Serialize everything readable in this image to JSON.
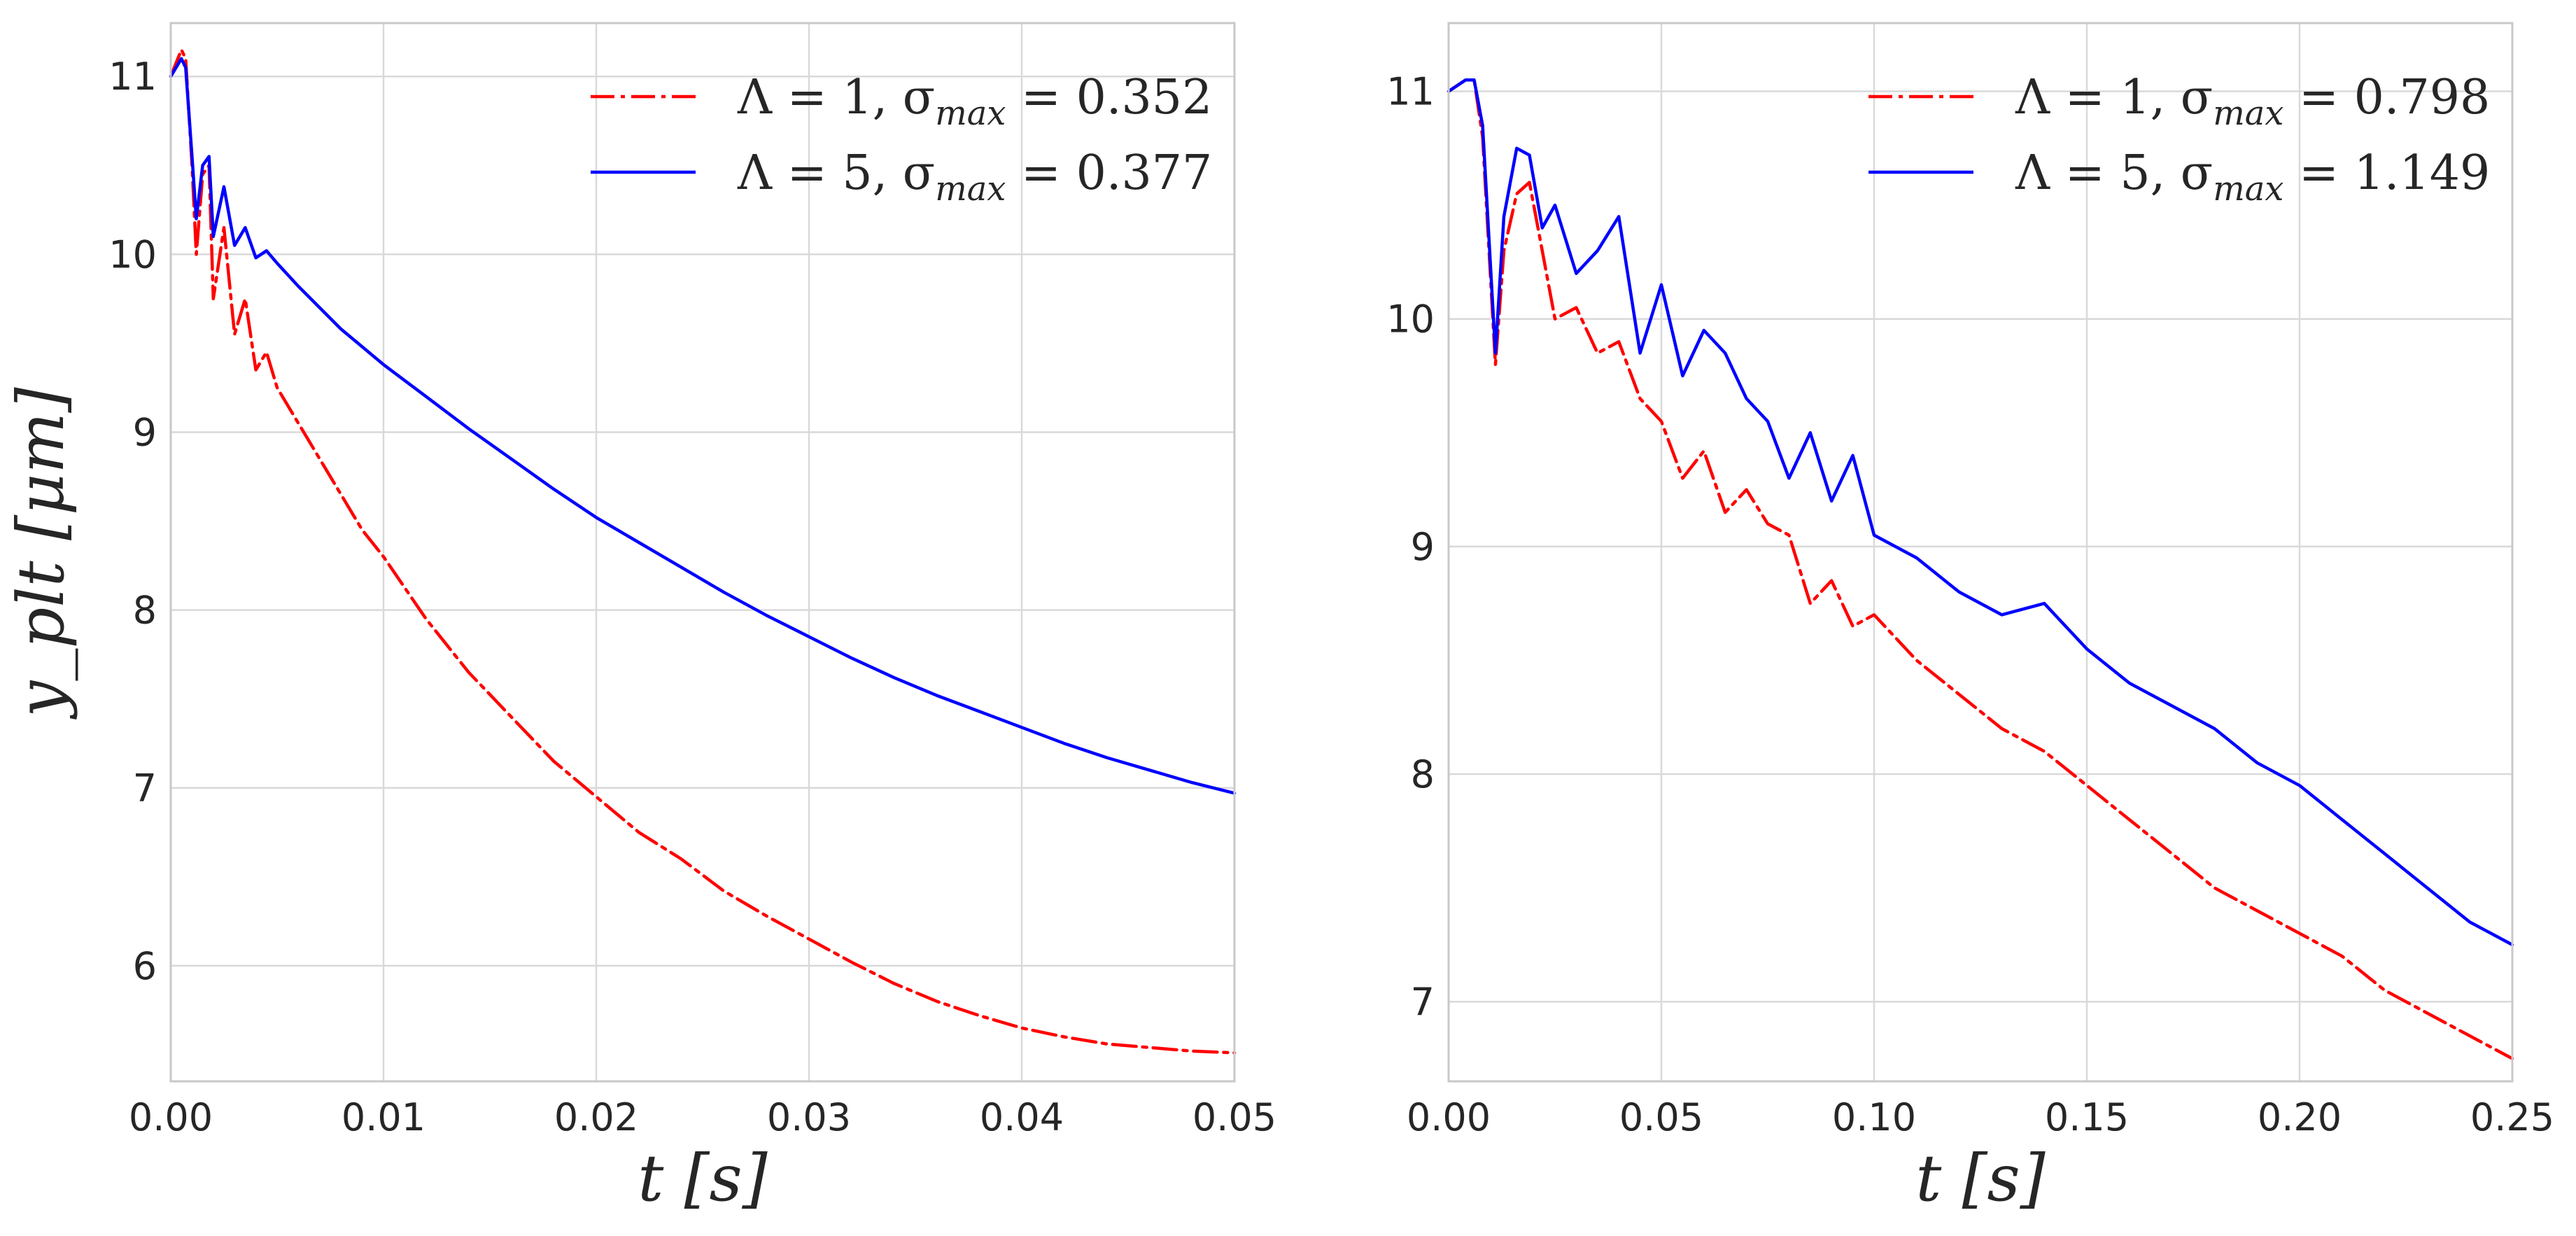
{
  "colors": {
    "red": "#ff0000",
    "blue": "#0000ff",
    "grid": "#d9d9d9",
    "frame": "#c8c8c8",
    "text": "#262626"
  },
  "chart_data": [
    {
      "type": "line",
      "xlabel": "t [s]",
      "ylabel": "y_plt [μm]",
      "xlim": [
        0.0,
        0.05
      ],
      "ylim": [
        5.35,
        11.3
      ],
      "xticks": [
        "0.00",
        "0.01",
        "0.02",
        "0.03",
        "0.04",
        "0.05"
      ],
      "xtick_values": [
        0.0,
        0.01,
        0.02,
        0.03,
        0.04,
        0.05
      ],
      "yticks": [
        "6",
        "7",
        "8",
        "9",
        "10",
        "11"
      ],
      "ytick_values": [
        6,
        7,
        8,
        9,
        10,
        11
      ],
      "grid": true,
      "legend_position": "upper-right",
      "series": [
        {
          "legend": {
            "base": "Λ = 1, σ",
            "sub": "max",
            "rest": " = 0.352"
          },
          "color": "#ff0000",
          "style": "dashed",
          "x": [
            0.0,
            0.0005,
            0.0007,
            0.001,
            0.0012,
            0.0015,
            0.0018,
            0.002,
            0.0025,
            0.003,
            0.0035,
            0.004,
            0.0045,
            0.005,
            0.006,
            0.007,
            0.008,
            0.009,
            0.01,
            0.012,
            0.014,
            0.016,
            0.018,
            0.02,
            0.022,
            0.024,
            0.026,
            0.028,
            0.03,
            0.032,
            0.034,
            0.036,
            0.038,
            0.04,
            0.042,
            0.044,
            0.046,
            0.048,
            0.05
          ],
          "y": [
            11.0,
            11.15,
            11.1,
            10.5,
            10.0,
            10.45,
            10.5,
            9.75,
            10.15,
            9.55,
            9.75,
            9.35,
            9.45,
            9.25,
            9.05,
            8.85,
            8.65,
            8.45,
            8.3,
            7.95,
            7.65,
            7.4,
            7.15,
            6.95,
            6.75,
            6.6,
            6.42,
            6.28,
            6.15,
            6.02,
            5.9,
            5.8,
            5.72,
            5.65,
            5.6,
            5.56,
            5.54,
            5.52,
            5.51
          ]
        },
        {
          "legend": {
            "base": "Λ = 5, σ",
            "sub": "max",
            "rest": " = 0.377"
          },
          "color": "#0000ff",
          "style": "solid",
          "x": [
            0.0,
            0.0005,
            0.0007,
            0.001,
            0.0012,
            0.0015,
            0.0018,
            0.002,
            0.0025,
            0.003,
            0.0035,
            0.004,
            0.0045,
            0.005,
            0.006,
            0.007,
            0.008,
            0.009,
            0.01,
            0.012,
            0.014,
            0.016,
            0.018,
            0.02,
            0.022,
            0.024,
            0.026,
            0.028,
            0.03,
            0.032,
            0.034,
            0.036,
            0.038,
            0.04,
            0.042,
            0.044,
            0.046,
            0.048,
            0.05
          ],
          "y": [
            11.0,
            11.1,
            11.05,
            10.55,
            10.2,
            10.5,
            10.55,
            10.1,
            10.38,
            10.05,
            10.15,
            9.98,
            10.02,
            9.95,
            9.82,
            9.7,
            9.58,
            9.48,
            9.38,
            9.2,
            9.02,
            8.85,
            8.68,
            8.52,
            8.38,
            8.24,
            8.1,
            7.97,
            7.85,
            7.73,
            7.62,
            7.52,
            7.43,
            7.34,
            7.25,
            7.17,
            7.1,
            7.03,
            6.97
          ]
        }
      ]
    },
    {
      "type": "line",
      "xlabel": "t [s]",
      "ylabel": "",
      "xlim": [
        0.0,
        0.25
      ],
      "ylim": [
        6.65,
        11.3
      ],
      "xticks": [
        "0.00",
        "0.05",
        "0.10",
        "0.15",
        "0.20",
        "0.25"
      ],
      "xtick_values": [
        0.0,
        0.05,
        0.1,
        0.15,
        0.2,
        0.25
      ],
      "yticks": [
        "7",
        "8",
        "9",
        "10",
        "11"
      ],
      "ytick_values": [
        7,
        8,
        9,
        10,
        11
      ],
      "grid": true,
      "legend_position": "upper-right",
      "series": [
        {
          "legend": {
            "base": "Λ = 1, σ",
            "sub": "max",
            "rest": " = 0.798"
          },
          "color": "#ff0000",
          "style": "dashed",
          "x": [
            0.0,
            0.004,
            0.006,
            0.008,
            0.011,
            0.013,
            0.016,
            0.019,
            0.022,
            0.025,
            0.03,
            0.035,
            0.04,
            0.045,
            0.05,
            0.055,
            0.06,
            0.065,
            0.07,
            0.075,
            0.08,
            0.085,
            0.09,
            0.095,
            0.1,
            0.11,
            0.12,
            0.13,
            0.14,
            0.15,
            0.16,
            0.17,
            0.18,
            0.19,
            0.2,
            0.21,
            0.22,
            0.23,
            0.24,
            0.25
          ],
          "y": [
            11.0,
            11.05,
            11.05,
            10.8,
            9.8,
            10.3,
            10.55,
            10.6,
            10.3,
            10.0,
            10.05,
            9.85,
            9.9,
            9.65,
            9.55,
            9.3,
            9.42,
            9.15,
            9.25,
            9.1,
            9.05,
            8.75,
            8.85,
            8.65,
            8.7,
            8.5,
            8.35,
            8.2,
            8.1,
            7.95,
            7.8,
            7.65,
            7.5,
            7.4,
            7.3,
            7.2,
            7.05,
            6.95,
            6.85,
            6.75
          ]
        },
        {
          "legend": {
            "base": "Λ = 5, σ",
            "sub": "max",
            "rest": " = 1.149"
          },
          "color": "#0000ff",
          "style": "solid",
          "x": [
            0.0,
            0.004,
            0.006,
            0.008,
            0.011,
            0.013,
            0.016,
            0.019,
            0.022,
            0.025,
            0.03,
            0.035,
            0.04,
            0.045,
            0.05,
            0.055,
            0.06,
            0.065,
            0.07,
            0.075,
            0.08,
            0.085,
            0.09,
            0.095,
            0.1,
            0.11,
            0.12,
            0.13,
            0.14,
            0.15,
            0.16,
            0.17,
            0.18,
            0.19,
            0.2,
            0.21,
            0.22,
            0.23,
            0.24,
            0.25
          ],
          "y": [
            11.0,
            11.05,
            11.05,
            10.85,
            9.85,
            10.45,
            10.75,
            10.72,
            10.4,
            10.5,
            10.2,
            10.3,
            10.45,
            9.85,
            10.15,
            9.75,
            9.95,
            9.85,
            9.65,
            9.55,
            9.3,
            9.5,
            9.2,
            9.4,
            9.05,
            8.95,
            8.8,
            8.7,
            8.75,
            8.55,
            8.4,
            8.3,
            8.2,
            8.05,
            7.95,
            7.8,
            7.65,
            7.5,
            7.35,
            7.25
          ]
        }
      ]
    }
  ]
}
